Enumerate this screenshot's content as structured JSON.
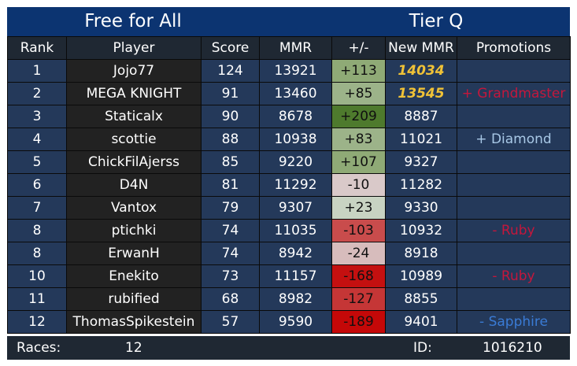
{
  "header": {
    "mode": "Free for All",
    "tier": "Tier Q"
  },
  "columns": [
    "Rank",
    "Player",
    "Score",
    "MMR",
    "+/-",
    "New MMR",
    "Promotions"
  ],
  "rows": [
    {
      "rank": "1",
      "player": "Jojo77",
      "score": "124",
      "mmr": "13921",
      "delta": "+113",
      "delta_color": "#8faa76",
      "delta_text": "#101010",
      "new_mmr": "14034",
      "new_highlight": true,
      "promotion": "",
      "promo_color": ""
    },
    {
      "rank": "2",
      "player": "MEGA KNIGHT",
      "score": "91",
      "mmr": "13460",
      "delta": "+85",
      "delta_color": "#9cb389",
      "delta_text": "#101010",
      "new_mmr": "13545",
      "new_highlight": true,
      "promotion": "+ Grandmaster",
      "promo_color": "#c4173c"
    },
    {
      "rank": "3",
      "player": "Staticalx",
      "score": "90",
      "mmr": "8678",
      "delta": "+209",
      "delta_color": "#4e7a2d",
      "delta_text": "#101010",
      "new_mmr": "8887",
      "new_highlight": false,
      "promotion": "",
      "promo_color": ""
    },
    {
      "rank": "4",
      "player": "scottie",
      "score": "88",
      "mmr": "10938",
      "delta": "+83",
      "delta_color": "#9cb389",
      "delta_text": "#101010",
      "new_mmr": "11021",
      "new_highlight": false,
      "promotion": "+ Diamond",
      "promo_color": "#a8c8e6"
    },
    {
      "rank": "5",
      "player": "ChickFilAjerss",
      "score": "85",
      "mmr": "9220",
      "delta": "+107",
      "delta_color": "#8faa76",
      "delta_text": "#101010",
      "new_mmr": "9327",
      "new_highlight": false,
      "promotion": "",
      "promo_color": ""
    },
    {
      "rank": "6",
      "player": "D4N",
      "score": "81",
      "mmr": "11292",
      "delta": "-10",
      "delta_color": "#d9c9c9",
      "delta_text": "#101010",
      "new_mmr": "11282",
      "new_highlight": false,
      "promotion": "",
      "promo_color": ""
    },
    {
      "rank": "7",
      "player": "Vantox",
      "score": "79",
      "mmr": "9307",
      "delta": "+23",
      "delta_color": "#c8d3c2",
      "delta_text": "#101010",
      "new_mmr": "9330",
      "new_highlight": false,
      "promotion": "",
      "promo_color": ""
    },
    {
      "rank": "8",
      "player": "ptichki",
      "score": "74",
      "mmr": "11035",
      "delta": "-103",
      "delta_color": "#c94c4c",
      "delta_text": "#101010",
      "new_mmr": "10932",
      "new_highlight": false,
      "promotion": "- Ruby",
      "promo_color": "#c4173c"
    },
    {
      "rank": "8",
      "player": "ErwanH",
      "score": "74",
      "mmr": "8942",
      "delta": "-24",
      "delta_color": "#d7bcbc",
      "delta_text": "#101010",
      "new_mmr": "8918",
      "new_highlight": false,
      "promotion": "",
      "promo_color": ""
    },
    {
      "rank": "10",
      "player": "Enekito",
      "score": "73",
      "mmr": "11157",
      "delta": "-168",
      "delta_color": "#c41010",
      "delta_text": "#101010",
      "new_mmr": "10989",
      "new_highlight": false,
      "promotion": "- Ruby",
      "promo_color": "#c4173c"
    },
    {
      "rank": "11",
      "player": "rubified",
      "score": "68",
      "mmr": "8982",
      "delta": "-127",
      "delta_color": "#c53636",
      "delta_text": "#101010",
      "new_mmr": "8855",
      "new_highlight": false,
      "promotion": "",
      "promo_color": ""
    },
    {
      "rank": "12",
      "player": "ThomasSpikestein",
      "score": "57",
      "mmr": "9590",
      "delta": "-189",
      "delta_color": "#c40808",
      "delta_text": "#101010",
      "new_mmr": "9401",
      "new_highlight": false,
      "promotion": "- Sapphire",
      "promo_color": "#3a7bd5"
    }
  ],
  "footer": {
    "races_label": "Races:",
    "races_value": "12",
    "id_label": "ID:",
    "id_value": "1016210"
  }
}
